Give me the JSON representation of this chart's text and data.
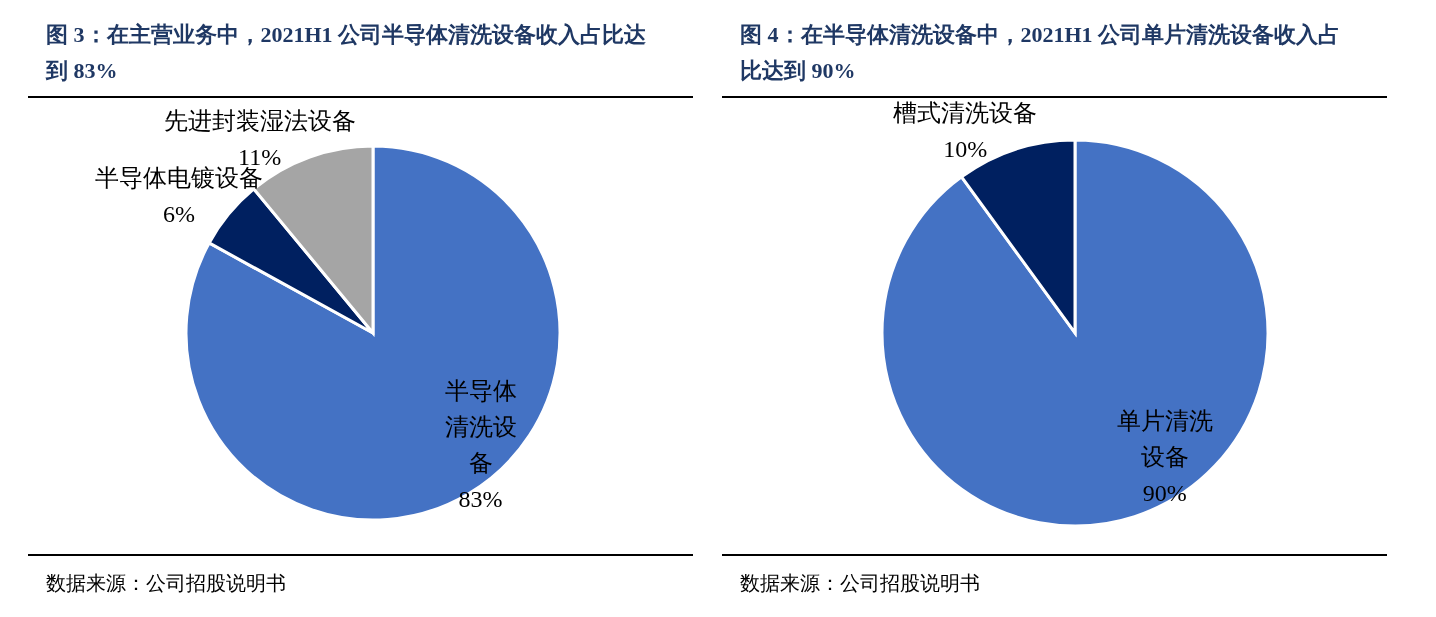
{
  "chart_data": [
    {
      "type": "pie",
      "title": "图 3：在主营业务中，2021H1 公司半导体清洗设备收入占比达到 83%",
      "categories": [
        "半导体清洗设备",
        "半导体电镀设备",
        "先进封装湿法设备"
      ],
      "values": [
        83,
        6,
        11
      ],
      "colors": [
        "#4472c4",
        "#002060",
        "#a5a5a5"
      ],
      "value_labels": [
        "83%",
        "6%",
        "11%"
      ],
      "annotations": [
        "数据来源：公司招股说明书"
      ]
    },
    {
      "type": "pie",
      "title": "图 4：在半导体清洗设备中，2021H1 公司单片清洗设备收入占比达到 90%",
      "categories": [
        "单片清洗设备",
        "槽式清洗设备"
      ],
      "values": [
        90,
        10
      ],
      "colors": [
        "#4472c4",
        "#002060"
      ],
      "value_labels": [
        "90%",
        "10%"
      ],
      "annotations": [
        "数据来源：公司招股说明书"
      ]
    }
  ]
}
